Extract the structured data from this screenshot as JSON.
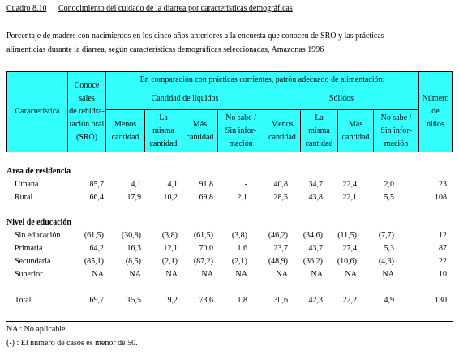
{
  "header": {
    "number": "Cuadro 8.10",
    "title": "Conocimiento del cuidado de la diarrea por características demográficas",
    "caption_lines": [
      "Porcentaje de madres con nacimientos en los cinco años anteriores a la encuesta que conocen de SRO y las prácticas",
      "alimenticias durante la diarrea, según características demográficas seleccionadas, Amazonas 1996"
    ]
  },
  "table": {
    "columns": {
      "characteristic": "Característica",
      "sro": [
        "Conoce",
        "sales",
        "de rehidra-",
        "tación oral",
        "(SRO)"
      ],
      "group": "En comparación con prácticas corrientes, patrón adecuado de alimentación:",
      "liquids": "Cantidad de líquidos",
      "solids": "Sólidos",
      "sub": [
        [
          "Menos",
          "cantidad"
        ],
        [
          "La",
          "misma",
          "cantidad"
        ],
        [
          "Más",
          "cantidad"
        ],
        [
          "No sabe /",
          "Sin infor-",
          "mación"
        ]
      ],
      "count": [
        "Número",
        "de",
        "niños"
      ]
    },
    "sections": [
      {
        "title": "Area de residencia",
        "rows": [
          {
            "label": "Urbana",
            "values": [
              "85,7",
              "4,1",
              "4,1",
              "91,8",
              "-",
              "40,8",
              "34,7",
              "22,4",
              "2,0",
              "23"
            ]
          },
          {
            "label": "Rural",
            "values": [
              "66,4",
              "17,9",
              "10,2",
              "69,8",
              "2,1",
              "28,5",
              "43,8",
              "22,1",
              "5,5",
              "108"
            ]
          }
        ]
      },
      {
        "title": "Nivel de educación",
        "rows": [
          {
            "label": "Sin educación",
            "values": [
              "(61,5)",
              "(30,8)",
              "(3,8)",
              "(61,5)",
              "(3,8)",
              "(46,2)",
              "(34,6)",
              "(11,5)",
              "(7,7)",
              "12"
            ]
          },
          {
            "label": "Primaria",
            "values": [
              "64,2",
              "16,3",
              "12,1",
              "70,0",
              "1,6",
              "23,7",
              "43,7",
              "27,4",
              "5,3",
              "87"
            ]
          },
          {
            "label": "Secundaria",
            "values": [
              "(85,1)",
              "(8,5)",
              "(2,1)",
              "(87,2)",
              "(2,1)",
              "(48,9)",
              "(36,2)",
              "(10,6)",
              "(4,3)",
              "22"
            ]
          },
          {
            "label": "Superior",
            "values": [
              "NA",
              "NA",
              "NA",
              "NA",
              "NA",
              "NA",
              "NA",
              "NA",
              "NA",
              "10"
            ]
          }
        ]
      }
    ],
    "total": {
      "label": "Total",
      "values": [
        "69,7",
        "15,5",
        "9,2",
        "73,6",
        "1,8",
        "30,6",
        "42,3",
        "22,2",
        "4,9",
        "130"
      ]
    }
  },
  "notes": [
    "NA : No aplicable.",
    "(-) : El número de casos es menor de 50."
  ]
}
